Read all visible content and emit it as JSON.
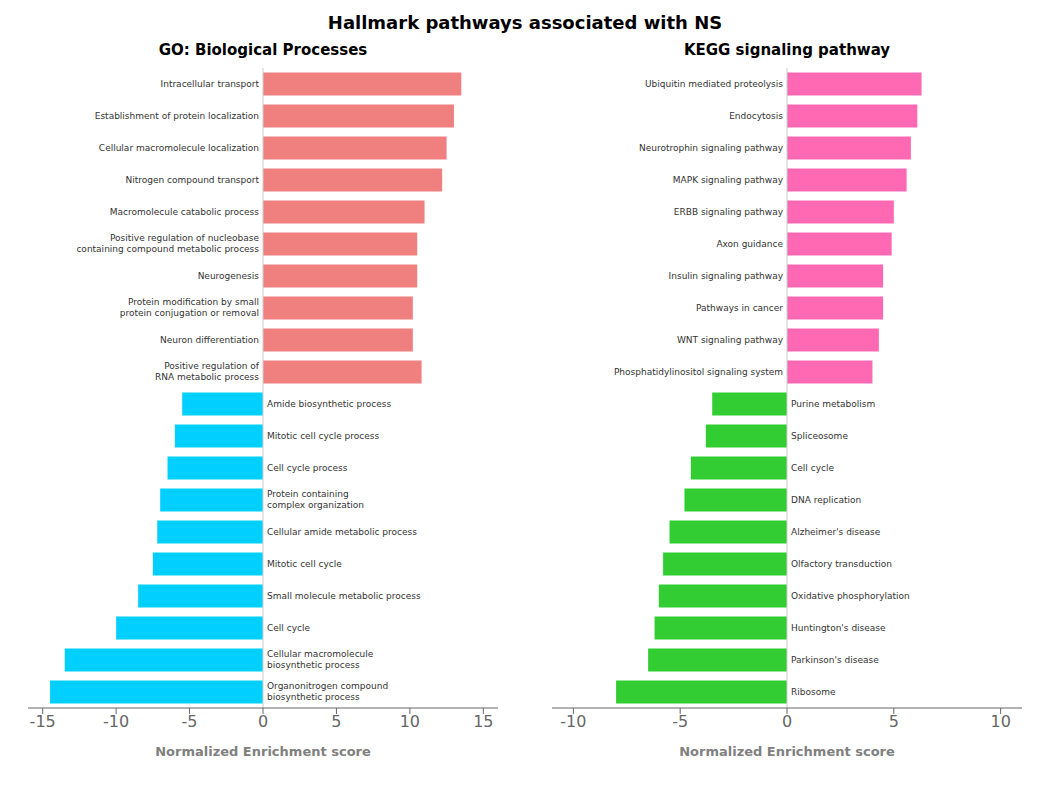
{
  "title": "Hallmark pathways associated with NS",
  "chart_data": [
    {
      "type": "bar",
      "orientation": "horizontal",
      "title": "GO: Biological Processes",
      "xlabel": "Normalized Enrichment score",
      "categories": [
        "Intracellular transport",
        "Establishment of protein localization",
        "Cellular macromolecule localization",
        "Nitrogen compound transport",
        "Macromolecule catabolic process",
        "Positive regulation of nucleobase\ncontaining compound metabolic process",
        "Neurogenesis",
        "Protein modification by small\nprotein conjugation or removal",
        "Neuron differentiation",
        "Positive regulation of\nRNA metabolic process",
        "Amide biosynthetic process",
        "Mitotic cell cycle process",
        "Cell cycle process",
        "Protein containing\ncomplex organization",
        "Cellular amide metabolic process",
        "Mitotic cell cycle",
        "Small molecule metabolic process",
        "Cell cycle",
        "Cellular macromolecule\nbiosynthetic process",
        "Organonitrogen compound\nbiosynthetic process"
      ],
      "values": [
        13.5,
        13.0,
        12.5,
        12.2,
        11.0,
        10.5,
        10.5,
        10.2,
        10.2,
        10.8,
        -5.5,
        -6.0,
        -6.5,
        -7.0,
        -7.2,
        -7.5,
        -8.5,
        -10.0,
        -13.5,
        -14.5
      ],
      "colors": [
        "#F08080",
        "#F08080",
        "#F08080",
        "#F08080",
        "#F08080",
        "#F08080",
        "#F08080",
        "#F08080",
        "#F08080",
        "#F08080",
        "#00CFFF",
        "#00CFFF",
        "#00CFFF",
        "#00CFFF",
        "#00CFFF",
        "#00CFFF",
        "#00CFFF",
        "#00CFFF",
        "#00CFFF",
        "#00CFFF"
      ],
      "xlim": [
        -16,
        16
      ],
      "xticks": [
        -15,
        -10,
        -5,
        0,
        5,
        10,
        15
      ],
      "grid": false,
      "tick_labels": "x"
    },
    {
      "type": "bar",
      "orientation": "horizontal",
      "title": "KEGG signaling pathway",
      "xlabel": "Normalized Enrichment score",
      "categories": [
        "Ubiquitin mediated proteolysis",
        "Endocytosis",
        "Neurotrophin signaling pathway",
        "MAPK signaling pathway",
        "ERBB signaling pathway",
        "Axon guidance",
        "Insulin signaling pathway",
        "Pathways in cancer",
        "WNT signaling pathway",
        "Phosphatidylinositol signaling system",
        "Purine metabolism",
        "Spliceosome",
        "Cell cycle",
        "DNA replication",
        "Alzheimer's disease",
        "Olfactory transduction",
        "Oxidative phosphorylation",
        "Huntington's disease",
        "Parkinson's disease",
        "Ribosome"
      ],
      "values": [
        6.3,
        6.1,
        5.8,
        5.6,
        5.0,
        4.9,
        4.5,
        4.5,
        4.3,
        4.0,
        -3.5,
        -3.8,
        -4.5,
        -4.8,
        -5.5,
        -5.8,
        -6.0,
        -6.2,
        -6.5,
        -8.0
      ],
      "colors": [
        "#FF69B4",
        "#FF69B4",
        "#FF69B4",
        "#FF69B4",
        "#FF69B4",
        "#FF69B4",
        "#FF69B4",
        "#FF69B4",
        "#FF69B4",
        "#FF69B4",
        "#32CD32",
        "#32CD32",
        "#32CD32",
        "#32CD32",
        "#32CD32",
        "#32CD32",
        "#32CD32",
        "#32CD32",
        "#32CD32",
        "#32CD32"
      ],
      "xlim": [
        -11,
        11
      ],
      "xticks": [
        -10,
        -5,
        0,
        5,
        10
      ],
      "grid": false,
      "tick_labels": "x"
    }
  ]
}
